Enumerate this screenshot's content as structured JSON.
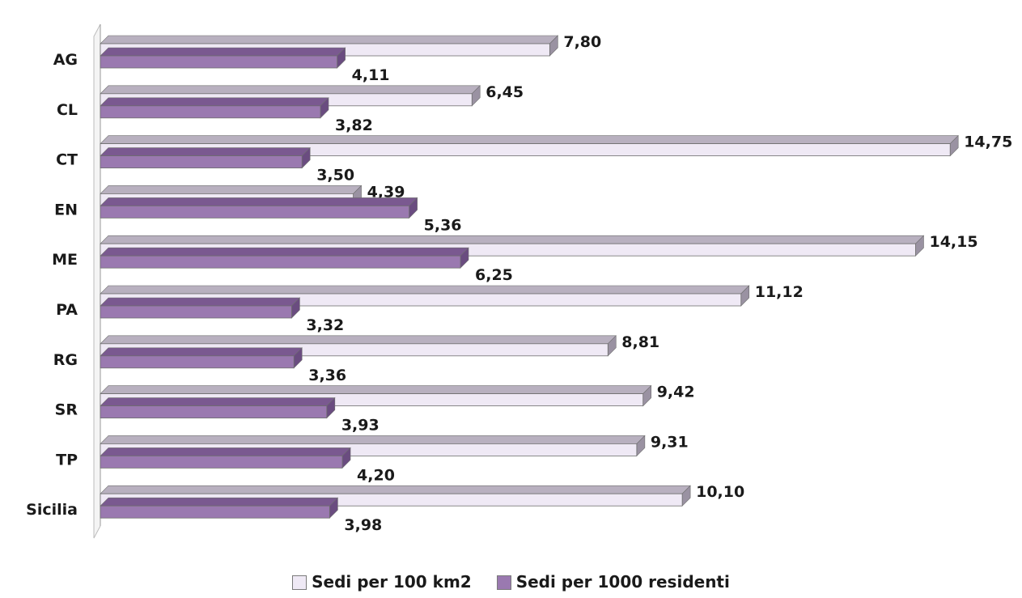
{
  "chart_data": {
    "type": "bar",
    "orientation": "horizontal",
    "categories": [
      "AG",
      "CL",
      "CT",
      "EN",
      "ME",
      "PA",
      "RG",
      "SR",
      "TP",
      "Sicilia"
    ],
    "series": [
      {
        "name": "Sedi per 100 km2",
        "values": [
          7.8,
          6.45,
          14.75,
          4.39,
          14.15,
          11.12,
          8.81,
          9.42,
          9.31,
          10.1
        ],
        "labels": [
          "7,80",
          "6,45",
          "14,75",
          "4,39",
          "14,15",
          "11,12",
          "8,81",
          "9,42",
          "9,31",
          "10,10"
        ],
        "color": "#efe9f5",
        "top_color": "#b8b0bf",
        "side_color": "#9a92a2"
      },
      {
        "name": "Sedi per 1000 residenti",
        "values": [
          4.11,
          3.82,
          3.5,
          5.36,
          6.25,
          3.32,
          3.36,
          3.93,
          4.2,
          3.98
        ],
        "labels": [
          "4,11",
          "3,82",
          "3,50",
          "5,36",
          "6,25",
          "3,32",
          "3,36",
          "3,93",
          "4,20",
          "3,98"
        ],
        "color": "#9a79b0",
        "top_color": "#7a5990",
        "side_color": "#6a4c80"
      }
    ],
    "xlim": [
      0,
      15
    ],
    "grid": false,
    "legend_position": "bottom"
  }
}
